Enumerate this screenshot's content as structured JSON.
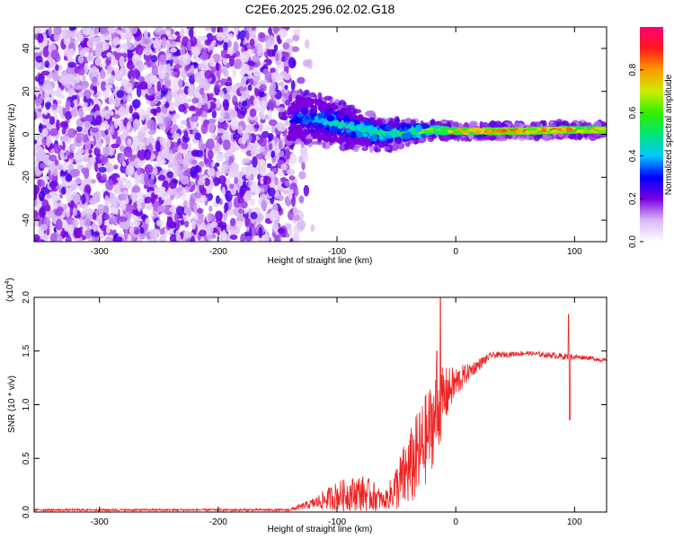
{
  "title": "C2E6.2025.296.02.02.G18",
  "chart_data": [
    {
      "type": "heatmap",
      "xlabel": "Height of straight line (km)",
      "ylabel": "Frequency (Hz)",
      "xlim": [
        -355,
        127
      ],
      "ylim": [
        -50,
        50
      ],
      "xticks": [
        -300,
        -200,
        -100,
        0,
        100
      ],
      "yticks": [
        -40,
        -20,
        0,
        20,
        40
      ],
      "noise_region": {
        "x_range": [
          -355,
          -140
        ],
        "freq_range": [
          -50,
          50
        ],
        "amplitude_range": [
          0.05,
          0.25
        ]
      },
      "signal_track": [
        {
          "x": -140,
          "freq_center": 8,
          "freq_spread": 10,
          "amplitude": 0.3
        },
        {
          "x": -120,
          "freq_center": 7,
          "freq_spread": 9,
          "amplitude": 0.4
        },
        {
          "x": -100,
          "freq_center": 5,
          "freq_spread": 8,
          "amplitude": 0.45
        },
        {
          "x": -80,
          "freq_center": 2,
          "freq_spread": 6,
          "amplitude": 0.5
        },
        {
          "x": -60,
          "freq_center": 0,
          "freq_spread": 5,
          "amplitude": 0.5
        },
        {
          "x": -40,
          "freq_center": 1,
          "freq_spread": 3,
          "amplitude": 0.55
        },
        {
          "x": -20,
          "freq_center": 2,
          "freq_spread": 1.5,
          "amplitude": 0.75
        },
        {
          "x": 0,
          "freq_center": 1.5,
          "freq_spread": 1,
          "amplitude": 0.9
        },
        {
          "x": 50,
          "freq_center": 1.5,
          "freq_spread": 1,
          "amplitude": 0.9
        },
        {
          "x": 90,
          "freq_center": 2,
          "freq_spread": 1,
          "amplitude": 0.9
        },
        {
          "x": 127,
          "freq_center": 2,
          "freq_spread": 1,
          "amplitude": 0.85
        }
      ],
      "colorbar": {
        "label": "Normalized spectral amplitude",
        "range": [
          0,
          1
        ],
        "ticks": [
          "0.0",
          "0.2",
          "0.4",
          "0.6",
          "0.8"
        ]
      }
    },
    {
      "type": "line",
      "xlabel": "Height of straight line (km)",
      "ylabel": "SNR (10 * v/v)",
      "y_scale_label": "(x10",
      "y_scale_exp": "4",
      "y_scale_close": ")",
      "xlim": [
        -355,
        127
      ],
      "ylim": [
        0,
        2.0
      ],
      "xticks": [
        -300,
        -200,
        -100,
        0,
        100
      ],
      "yticks": [
        "0.0",
        "0.5",
        "1.0",
        "1.5",
        "2.0"
      ],
      "line_color": "#ee2222",
      "series": [
        {
          "name": "SNR",
          "points": [
            {
              "x": -355,
              "y": 0.02,
              "noise": 0.01
            },
            {
              "x": -140,
              "y": 0.02,
              "noise": 0.01
            },
            {
              "x": -120,
              "y": 0.08,
              "noise": 0.05
            },
            {
              "x": -100,
              "y": 0.15,
              "noise": 0.14
            },
            {
              "x": -80,
              "y": 0.18,
              "noise": 0.17
            },
            {
              "x": -70,
              "y": 0.15,
              "noise": 0.15
            },
            {
              "x": -60,
              "y": 0.1,
              "noise": 0.07
            },
            {
              "x": -45,
              "y": 0.3,
              "noise": 0.3
            },
            {
              "x": -30,
              "y": 0.55,
              "noise": 0.45
            },
            {
              "x": -15,
              "y": 0.95,
              "noise": 0.4
            },
            {
              "x": -5,
              "y": 1.15,
              "noise": 0.2
            },
            {
              "x": 10,
              "y": 1.3,
              "noise": 0.08
            },
            {
              "x": 30,
              "y": 1.46,
              "noise": 0.03
            },
            {
              "x": 60,
              "y": 1.48,
              "noise": 0.02
            },
            {
              "x": 90,
              "y": 1.45,
              "noise": 0.03
            },
            {
              "x": 110,
              "y": 1.44,
              "noise": 0.02
            },
            {
              "x": 127,
              "y": 1.41,
              "noise": 0.02
            }
          ],
          "spikes": [
            {
              "x": -13,
              "y": 2.0
            },
            {
              "x": -16,
              "y": 1.5
            },
            {
              "x": 95,
              "y": 1.84
            },
            {
              "x": 96,
              "y": 0.86
            }
          ]
        }
      ]
    }
  ]
}
